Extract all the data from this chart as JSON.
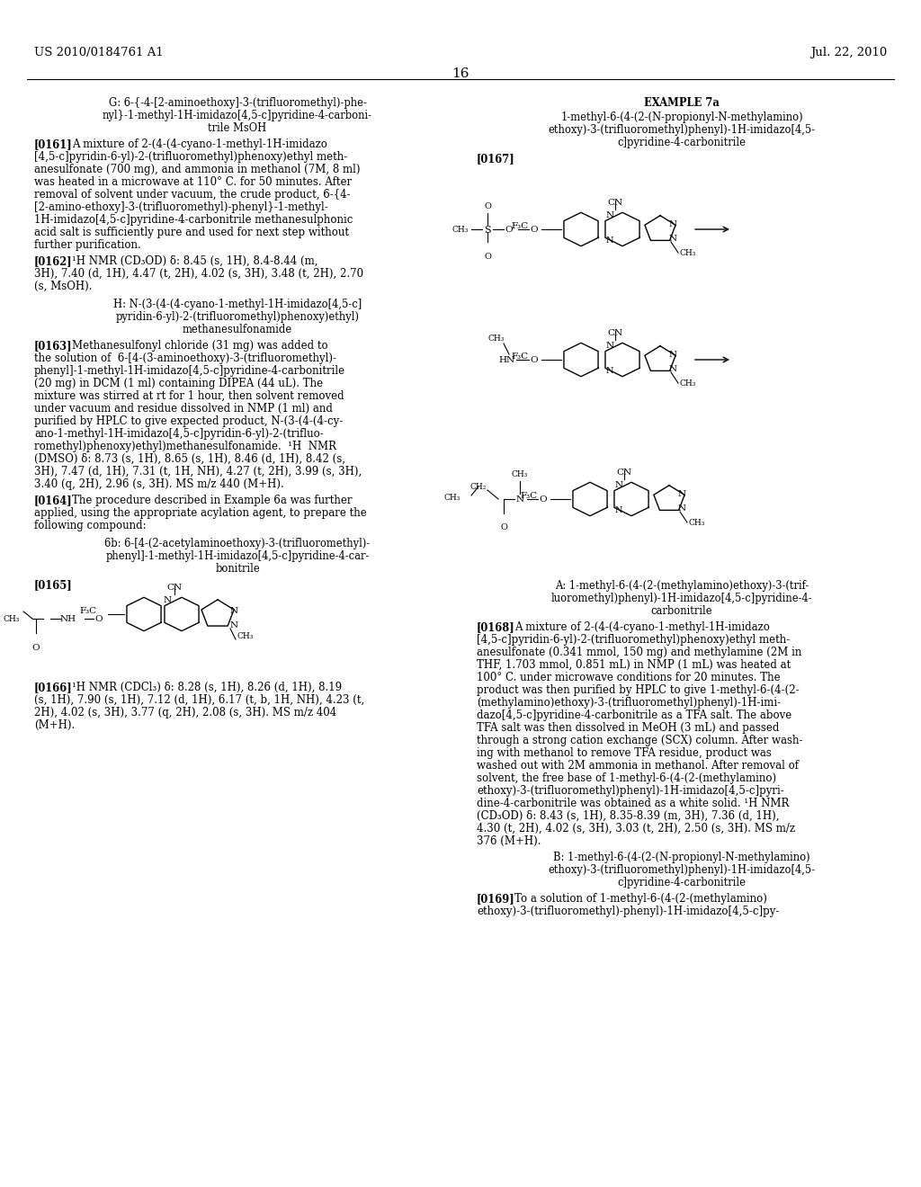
{
  "background_color": "#ffffff",
  "text_color": "#000000",
  "header_left": "US 2010/0184761 A1",
  "header_right": "Jul. 22, 2010",
  "page_number": "16",
  "figsize": [
    10.24,
    13.2
  ],
  "dpi": 100
}
